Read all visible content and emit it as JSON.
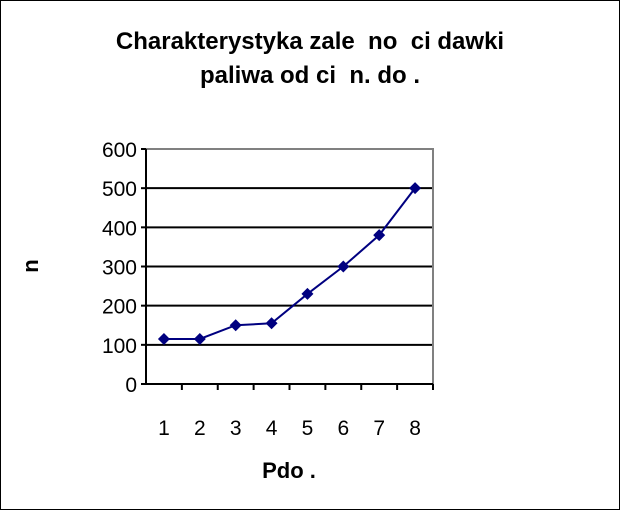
{
  "chart_data": {
    "type": "line",
    "title_lines": [
      "Charakterystyka zale  no  ci dawki",
      "paliwa od ci  n. do ."
    ],
    "xlabel": "Pdo .",
    "ylabel": "n",
    "categories": [
      "1",
      "2",
      "3",
      "4",
      "5",
      "6",
      "7",
      "8"
    ],
    "series": [
      {
        "values": [
          115,
          115,
          150,
          155,
          230,
          300,
          380,
          500
        ]
      }
    ],
    "ylim": [
      0,
      600
    ],
    "yticks": [
      0,
      100,
      200,
      300,
      400,
      500,
      600
    ],
    "grid": true,
    "legend": "none",
    "colors": {
      "series": "#000080",
      "grid": "#000000",
      "plot_border": "#808080"
    }
  }
}
